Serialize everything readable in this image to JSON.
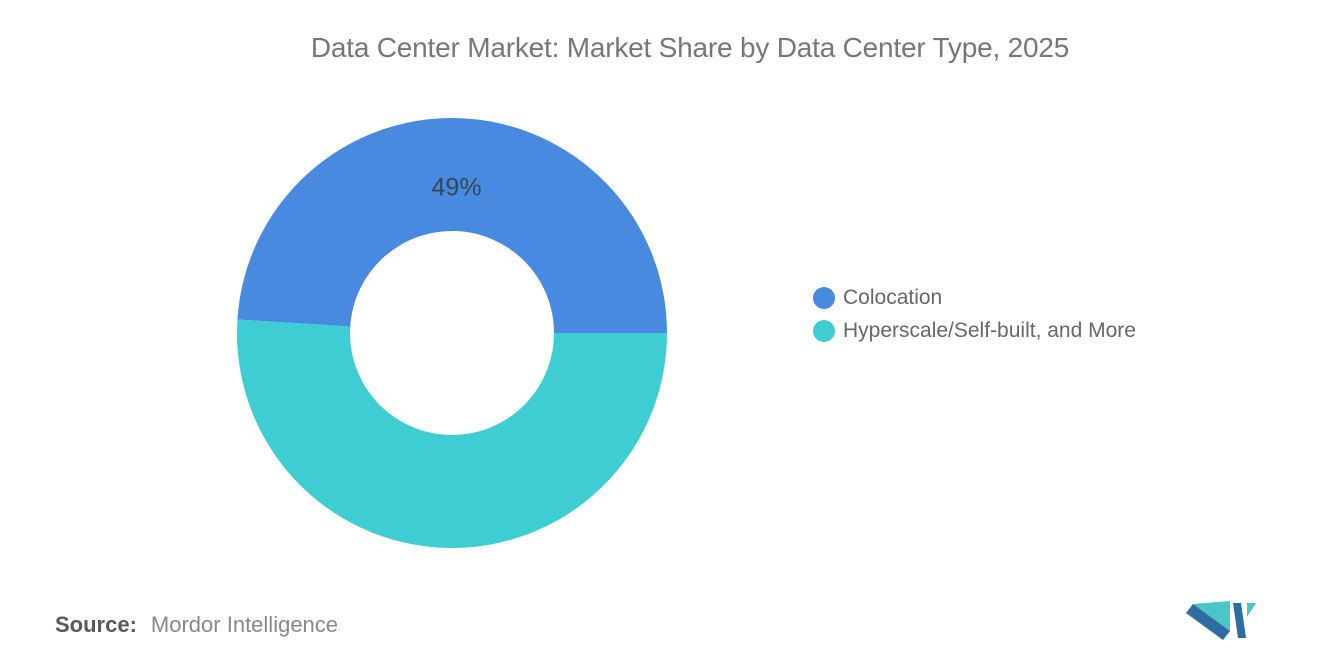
{
  "title": "Data Center Market: Market Share by Data Center Type, 2025",
  "chart_data": {
    "type": "pie",
    "subtype": "donut",
    "title": "Data Center Market: Market Share by Data Center Type, 2025",
    "unit": "percent",
    "slices": [
      {
        "label": "Colocation",
        "value": 49,
        "data_label": "49%",
        "color": "#488ae0"
      },
      {
        "label": "Hyperscale/Self-built, and More",
        "value": 51,
        "data_label": "",
        "color": "#3dcdd2"
      }
    ],
    "start_angle_deg": 0,
    "direction": "counterclockwise",
    "inner_radius_ratio": 0.474,
    "legend_position": "right",
    "data_label_color": "#37474f"
  },
  "source": {
    "prefix": "Source:",
    "name": "Mordor Intelligence"
  },
  "logo": {
    "label": "Mordor Intelligence logo",
    "blue": "#2e6da4",
    "teal": "#4ac5c8"
  }
}
